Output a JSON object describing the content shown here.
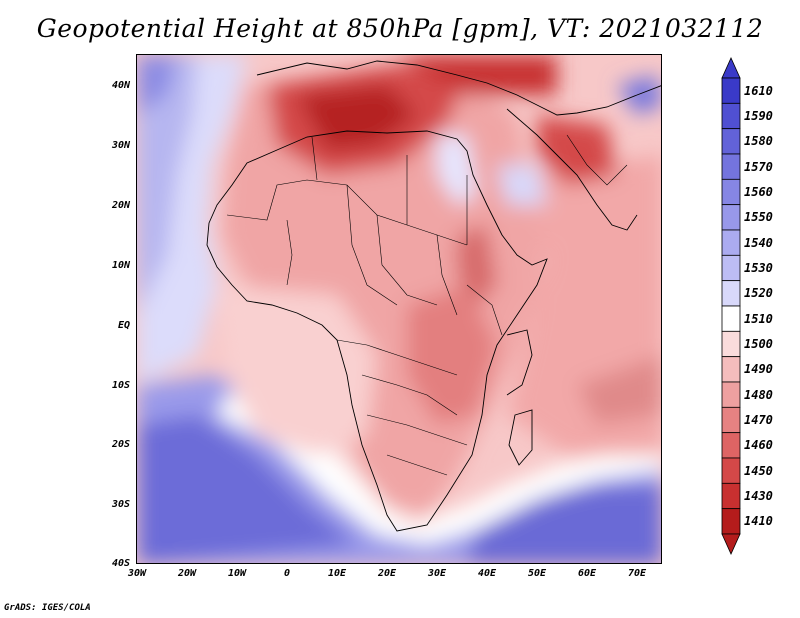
{
  "title": "Geopotential Height at 850hPa [gpm], VT: 2021032112",
  "credit": "GrADS: IGES/COLA",
  "map": {
    "variable": "Geopotential Height at 850hPa",
    "units": "gpm",
    "valid_time": "2021032112",
    "lon_range": [
      -30,
      75
    ],
    "lat_range": [
      -40,
      45
    ]
  },
  "axes": {
    "lat_labels": [
      "40N",
      "30N",
      "20N",
      "10N",
      "EQ",
      "10S",
      "20S",
      "30S",
      "40S"
    ],
    "lon_labels": [
      "30W",
      "20W",
      "10W",
      "0",
      "10E",
      "20E",
      "30E",
      "40E",
      "50E",
      "60E",
      "70E"
    ]
  },
  "colorbar": {
    "levels": [
      "1610",
      "1590",
      "1580",
      "1570",
      "1560",
      "1550",
      "1540",
      "1530",
      "1520",
      "1510",
      "1500",
      "1490",
      "1480",
      "1470",
      "1460",
      "1450",
      "1430",
      "1410"
    ],
    "colors": [
      "#3a3ac8",
      "#5050d2",
      "#6262d8",
      "#7474de",
      "#8686e4",
      "#9898ea",
      "#ababf0",
      "#bdbdf5",
      "#d8d8fa",
      "#ffffff",
      "#fadcdc",
      "#f5bdbd",
      "#eea0a0",
      "#e68282",
      "#de6464",
      "#d44848",
      "#c83030",
      "#b41c1c"
    ]
  },
  "fields": {
    "ocean_south": "#6b6bd6",
    "ocean_atlantic": "#d8d8fa",
    "land_default": "#f0a5a5",
    "sahara_low": "#c83030",
    "equatorial": "#f5bdbd",
    "indian_ocean": "#f0a0a0",
    "mediterranean_high": "#e6e6ff"
  }
}
